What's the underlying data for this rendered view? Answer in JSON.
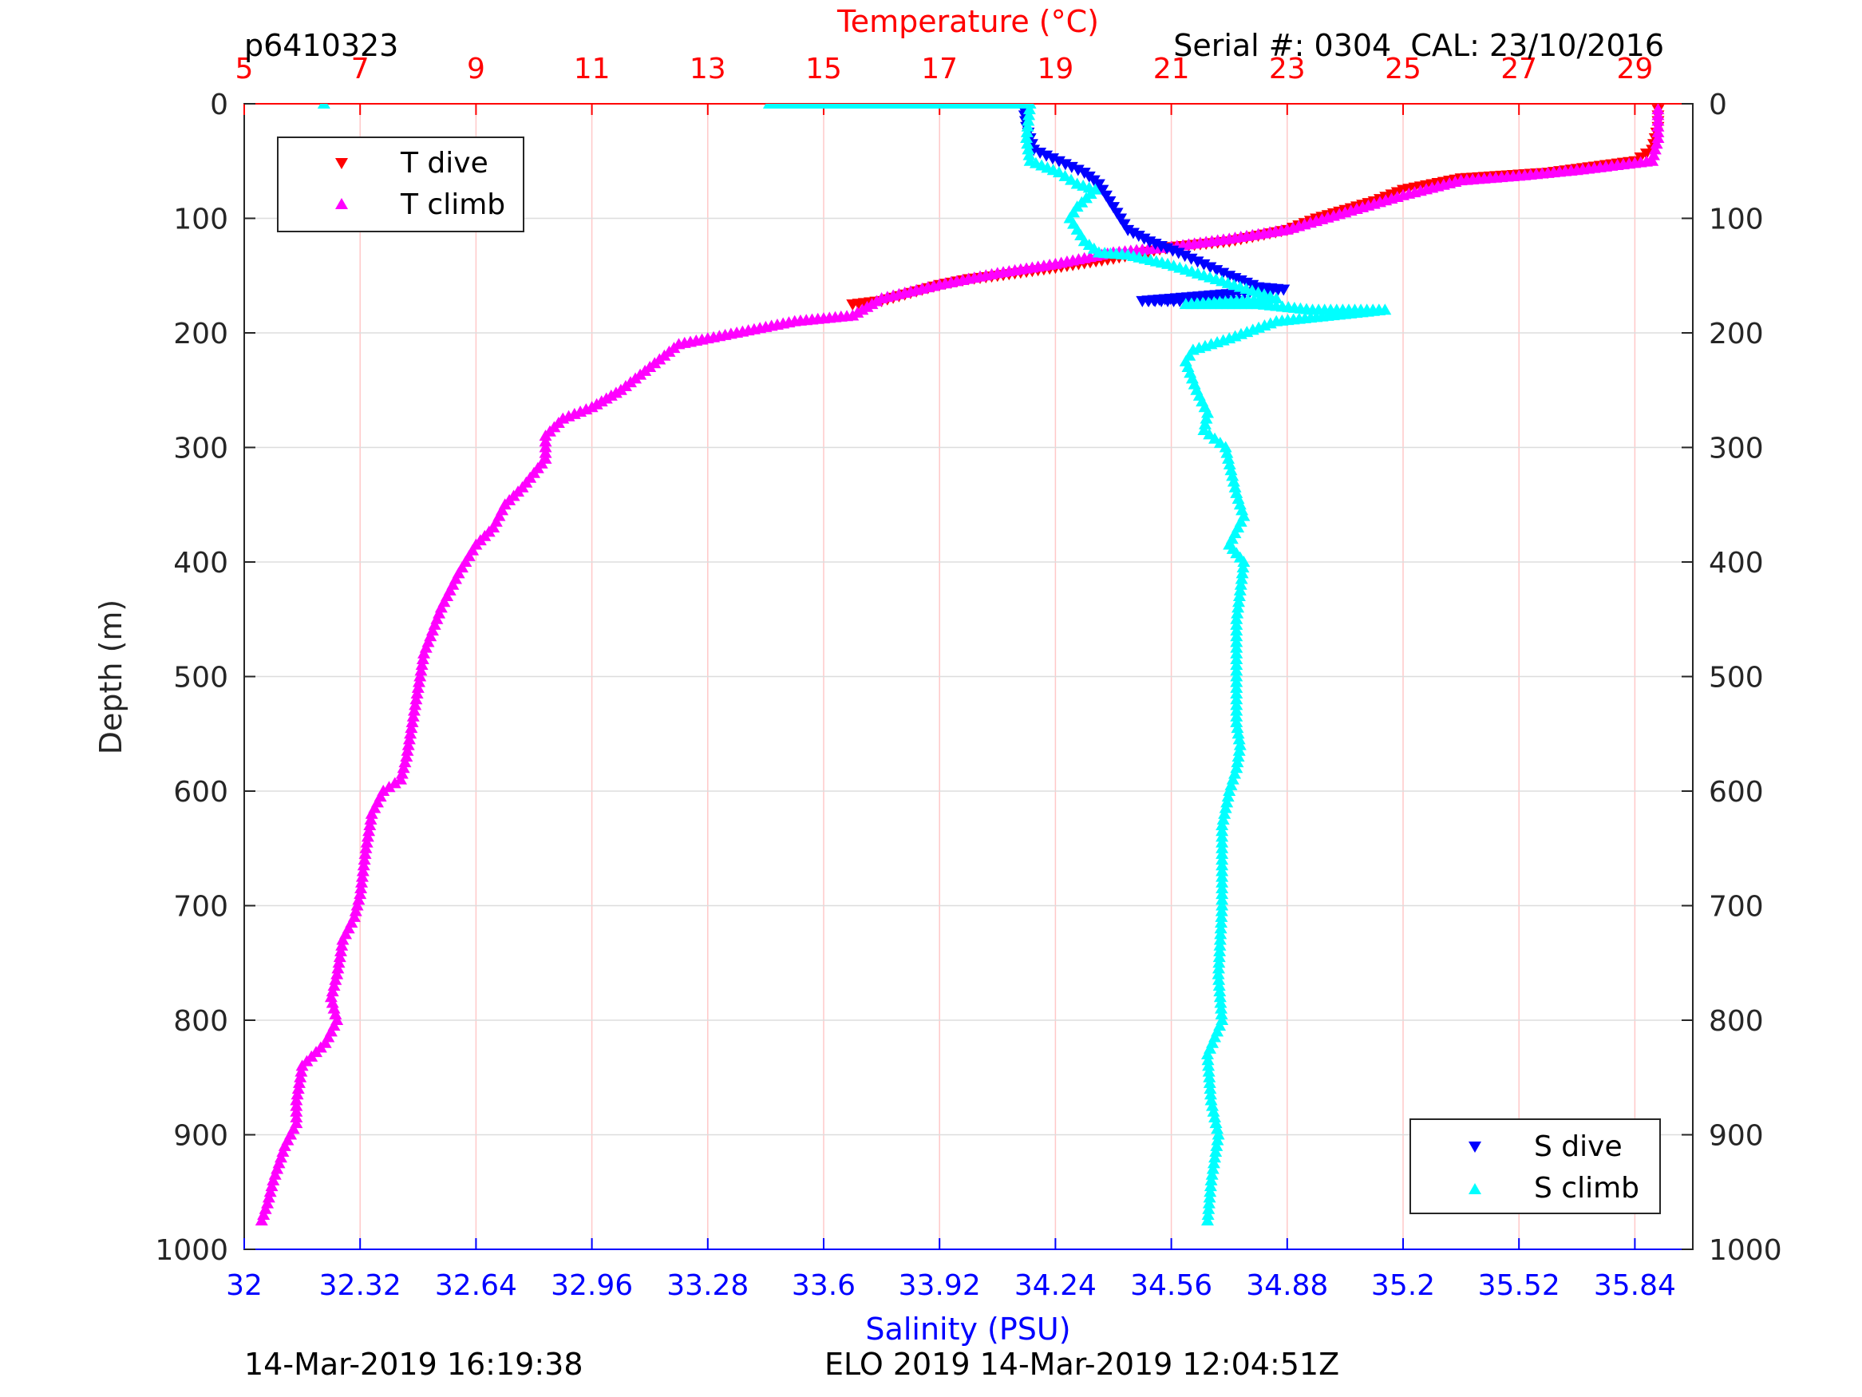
{
  "header": {
    "profile_id": "p6410323",
    "serial": "Serial #: 0304  CAL: 23/10/2016"
  },
  "footer": {
    "left": "14-Mar-2019 16:19:38",
    "center": "ELO 2019 14-Mar-2019 12:04:51Z"
  },
  "colors": {
    "t_dive": "#ff0000",
    "t_climb": "#ff00ff",
    "s_dive": "#0000ff",
    "s_climb": "#00ffff",
    "temperature_axis": "#ff0000",
    "salinity_axis": "#0000ff",
    "temp_grid": "#ffc8c8",
    "depth_grid": "#dddddd"
  },
  "chart_data": {
    "type": "scatter",
    "temperature_axis": {
      "label": "Temperature (°C)",
      "range": [
        5,
        30
      ],
      "ticks": [
        "5",
        "7",
        "9",
        "11",
        "13",
        "15",
        "17",
        "19",
        "21",
        "23",
        "25",
        "27",
        "29"
      ]
    },
    "salinity_axis": {
      "label": "Salinity (PSU)",
      "range": [
        32,
        36
      ],
      "ticks": [
        "32",
        "32.32",
        "32.64",
        "32.96",
        "33.28",
        "33.6",
        "33.92",
        "34.24",
        "34.56",
        "34.88",
        "35.2",
        "35.52",
        "35.84"
      ]
    },
    "depth_axis": {
      "label": "Depth (m)",
      "range": [
        0,
        1000
      ],
      "reversed": true,
      "ticks": [
        "0",
        "100",
        "200",
        "300",
        "400",
        "500",
        "600",
        "700",
        "800",
        "900",
        "1000"
      ]
    },
    "grid": true,
    "legends": [
      {
        "position": "top-left",
        "entries": [
          "T dive",
          "T climb"
        ]
      },
      {
        "position": "bottom-right",
        "entries": [
          "S dive",
          "S climb"
        ]
      }
    ],
    "series": [
      {
        "name": "T dive",
        "axis": "temperature",
        "marker": "triangle-down",
        "points": [
          [
            29.4,
            0
          ],
          [
            29.4,
            20
          ],
          [
            29.3,
            40
          ],
          [
            29.0,
            50
          ],
          [
            27.5,
            60
          ],
          [
            26.0,
            65
          ],
          [
            25.0,
            75
          ],
          [
            24.5,
            85
          ],
          [
            23.5,
            100
          ],
          [
            23.0,
            110
          ],
          [
            22.0,
            120
          ],
          [
            21.0,
            125
          ],
          [
            20.0,
            135
          ],
          [
            19.0,
            143
          ],
          [
            18.0,
            150
          ],
          [
            17.5,
            153
          ],
          [
            17.0,
            158
          ],
          [
            16.5,
            165
          ],
          [
            16.0,
            172
          ],
          [
            15.5,
            175
          ]
        ]
      },
      {
        "name": "T climb",
        "axis": "temperature",
        "marker": "triangle-up",
        "points": [
          [
            29.4,
            5
          ],
          [
            29.4,
            30
          ],
          [
            29.3,
            50
          ],
          [
            28.0,
            58
          ],
          [
            27.0,
            63
          ],
          [
            26.0,
            67
          ],
          [
            25.0,
            80
          ],
          [
            24.0,
            95
          ],
          [
            23.0,
            110
          ],
          [
            22.0,
            118
          ],
          [
            21.0,
            125
          ],
          [
            20.0,
            130
          ],
          [
            19.0,
            140
          ],
          [
            18.0,
            148
          ],
          [
            17.0,
            158
          ],
          [
            16.0,
            170
          ],
          [
            15.5,
            185
          ],
          [
            14.5,
            190
          ],
          [
            13.5,
            200
          ],
          [
            12.5,
            210
          ],
          [
            12.0,
            230
          ],
          [
            11.5,
            250
          ],
          [
            11.0,
            265
          ],
          [
            10.5,
            275
          ],
          [
            10.2,
            290
          ],
          [
            10.2,
            310
          ],
          [
            9.8,
            335
          ],
          [
            9.5,
            350
          ],
          [
            9.3,
            370
          ],
          [
            9.0,
            385
          ],
          [
            8.7,
            410
          ],
          [
            8.4,
            440
          ],
          [
            8.1,
            480
          ],
          [
            8.0,
            510
          ],
          [
            7.9,
            540
          ],
          [
            7.8,
            570
          ],
          [
            7.7,
            590
          ],
          [
            7.4,
            600
          ],
          [
            7.2,
            620
          ],
          [
            7.1,
            650
          ],
          [
            7.0,
            690
          ],
          [
            6.9,
            710
          ],
          [
            6.7,
            730
          ],
          [
            6.6,
            760
          ],
          [
            6.5,
            780
          ],
          [
            6.6,
            800
          ],
          [
            6.4,
            820
          ],
          [
            6.0,
            840
          ],
          [
            5.9,
            870
          ],
          [
            5.9,
            890
          ],
          [
            5.7,
            910
          ],
          [
            5.5,
            940
          ],
          [
            5.4,
            960
          ],
          [
            5.3,
            975
          ]
        ]
      },
      {
        "name": "S dive",
        "axis": "salinity",
        "marker": "triangle-down",
        "points": [
          [
            34.15,
            0
          ],
          [
            34.16,
            20
          ],
          [
            34.18,
            40
          ],
          [
            34.25,
            50
          ],
          [
            34.32,
            60
          ],
          [
            34.36,
            70
          ],
          [
            34.38,
            80
          ],
          [
            34.4,
            90
          ],
          [
            34.42,
            100
          ],
          [
            34.44,
            110
          ],
          [
            34.5,
            120
          ],
          [
            34.58,
            130
          ],
          [
            34.65,
            140
          ],
          [
            34.72,
            150
          ],
          [
            34.8,
            160
          ],
          [
            34.87,
            162
          ],
          [
            34.48,
            172
          ],
          [
            34.55,
            172
          ],
          [
            34.65,
            172
          ],
          [
            34.75,
            172
          ]
        ]
      },
      {
        "name": "S climb",
        "axis": "salinity",
        "marker": "triangle-up",
        "points": [
          [
            32.22,
            0
          ],
          [
            33.45,
            0
          ],
          [
            33.75,
            0
          ],
          [
            34.1,
            0
          ],
          [
            34.17,
            0
          ],
          [
            34.16,
            30
          ],
          [
            34.17,
            50
          ],
          [
            34.25,
            60
          ],
          [
            34.3,
            70
          ],
          [
            34.35,
            75
          ],
          [
            34.3,
            90
          ],
          [
            34.28,
            100
          ],
          [
            34.3,
            110
          ],
          [
            34.32,
            120
          ],
          [
            34.36,
            130
          ],
          [
            34.44,
            132
          ],
          [
            34.55,
            140
          ],
          [
            34.65,
            150
          ],
          [
            34.75,
            160
          ],
          [
            34.85,
            170
          ],
          [
            34.6,
            175
          ],
          [
            34.8,
            175
          ],
          [
            34.95,
            180
          ],
          [
            35.05,
            180
          ],
          [
            35.15,
            180
          ],
          [
            34.85,
            190
          ],
          [
            34.72,
            205
          ],
          [
            34.62,
            215
          ],
          [
            34.6,
            225
          ],
          [
            34.63,
            250
          ],
          [
            34.66,
            270
          ],
          [
            34.65,
            285
          ],
          [
            34.71,
            300
          ],
          [
            34.74,
            340
          ],
          [
            34.76,
            360
          ],
          [
            34.72,
            385
          ],
          [
            34.76,
            400
          ],
          [
            34.74,
            450
          ],
          [
            34.74,
            500
          ],
          [
            34.74,
            540
          ],
          [
            34.75,
            560
          ],
          [
            34.74,
            580
          ],
          [
            34.72,
            600
          ],
          [
            34.7,
            630
          ],
          [
            34.7,
            700
          ],
          [
            34.69,
            760
          ],
          [
            34.7,
            800
          ],
          [
            34.66,
            830
          ],
          [
            34.67,
            870
          ],
          [
            34.69,
            900
          ],
          [
            34.67,
            940
          ],
          [
            34.66,
            975
          ]
        ]
      }
    ]
  }
}
